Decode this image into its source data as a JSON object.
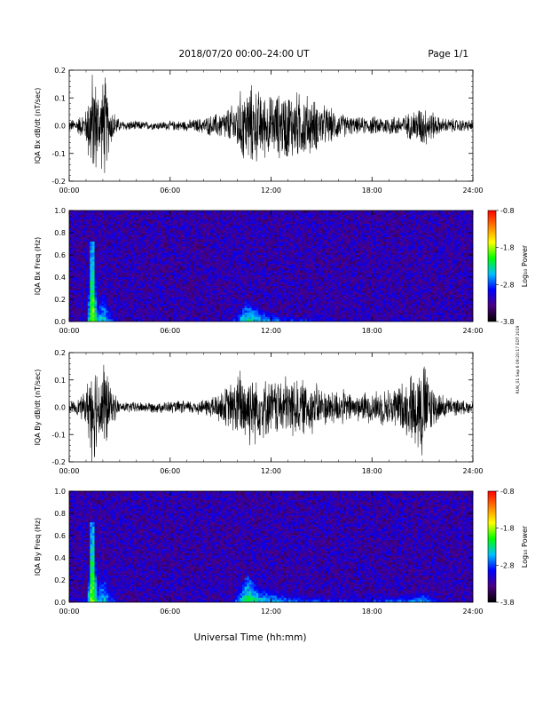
{
  "header": {
    "date_range": "2018/07/20   00:00–24:00 UT",
    "page": "Page 1/1"
  },
  "x_axis_title": "Universal Time (hh:mm)",
  "side_note": "RUN_01 Sep 6 09:20:17 EDT 2019",
  "colors": {
    "trace": "#000000",
    "spectrogram_background": "#2a0070",
    "colorbar_stops": [
      "#000000",
      "#4b0082",
      "#0000ff",
      "#00bfff",
      "#00ff00",
      "#ffff00",
      "#ff7f00",
      "#ff0000"
    ]
  },
  "chart_data": [
    {
      "type": "line",
      "ylabel": "IQA Bx dB/dt (nT/sec)",
      "xlim": [
        0,
        24
      ],
      "ylim": [
        -0.2,
        0.2
      ],
      "x_ticks": [
        "00:00",
        "06:00",
        "12:00",
        "18:00",
        "24:00"
      ],
      "y_ticks": [
        "-0.2",
        "-0.1",
        "0.0",
        "0.1",
        "0.2"
      ],
      "series": [
        {
          "description_of_activity": "waveform envelope (half-amplitude, nT/sec) vs UT hour",
          "x": [
            0,
            0.5,
            1.0,
            1.3,
            1.5,
            1.8,
            2.1,
            2.4,
            3,
            5,
            7,
            8,
            9,
            9.8,
            10.2,
            10.8,
            11.5,
            12,
            13,
            14,
            14.5,
            15,
            16,
            17,
            20,
            20.5,
            21,
            21.5,
            22,
            24
          ],
          "values": [
            0.02,
            0.03,
            0.06,
            0.2,
            0.2,
            0.12,
            0.2,
            0.08,
            0.02,
            0.015,
            0.02,
            0.03,
            0.05,
            0.08,
            0.13,
            0.15,
            0.12,
            0.11,
            0.13,
            0.12,
            0.1,
            0.08,
            0.05,
            0.03,
            0.04,
            0.06,
            0.08,
            0.06,
            0.03,
            0.02
          ]
        }
      ]
    },
    {
      "type": "heatmap",
      "ylabel": "IQA Bx Freq (Hz)",
      "xlim": [
        0,
        24
      ],
      "ylim": [
        0,
        1.0
      ],
      "x_ticks": [
        "00:00",
        "06:00",
        "12:00",
        "18:00",
        "24:00"
      ],
      "y_ticks": [
        "0.0",
        "0.2",
        "0.4",
        "0.6",
        "0.8",
        "1.0"
      ],
      "colorbar_label": "Log₁₀ Power",
      "colorbar_ticks": [
        "-0.8",
        "-1.8",
        "-2.8",
        "-3.8"
      ],
      "clim": [
        -3.8,
        -0.8
      ],
      "activity_x": [
        0,
        1.0,
        1.3,
        1.6,
        2.0,
        2.3,
        3,
        9.5,
        10.5,
        11.5,
        13,
        15,
        17,
        20,
        22,
        24
      ],
      "activity_max_freq": [
        0.03,
        0.08,
        0.9,
        0.2,
        0.3,
        0.2,
        0.04,
        0.06,
        0.2,
        0.12,
        0.08,
        0.06,
        0.05,
        0.05,
        0.04,
        0.03
      ],
      "activity_peak_power": [
        -3.3,
        -2.8,
        -1.6,
        -2.5,
        -2.4,
        -2.6,
        -3.3,
        -3.0,
        -2.2,
        -2.5,
        -2.7,
        -2.8,
        -2.9,
        -2.9,
        -3.0,
        -3.2
      ]
    },
    {
      "type": "line",
      "ylabel": "IQA By dB/dt (nT/sec)",
      "xlim": [
        0,
        24
      ],
      "ylim": [
        -0.2,
        0.2
      ],
      "x_ticks": [
        "00:00",
        "06:00",
        "12:00",
        "18:00",
        "24:00"
      ],
      "y_ticks": [
        "-0.2",
        "-0.1",
        "0.0",
        "0.1",
        "0.2"
      ],
      "series": [
        {
          "description_of_activity": "waveform envelope (half-amplitude, nT/sec) vs UT hour",
          "x": [
            0,
            0.5,
            1.0,
            1.3,
            1.5,
            1.8,
            2.1,
            2.4,
            3,
            5,
            7,
            8,
            9,
            9.8,
            10.2,
            10.8,
            11.5,
            12,
            13,
            14,
            14.5,
            15,
            16,
            17,
            19,
            20,
            20.5,
            21,
            21.5,
            22,
            23,
            24
          ],
          "values": [
            0.02,
            0.03,
            0.06,
            0.2,
            0.2,
            0.12,
            0.2,
            0.08,
            0.02,
            0.02,
            0.025,
            0.03,
            0.06,
            0.1,
            0.15,
            0.14,
            0.11,
            0.1,
            0.12,
            0.1,
            0.1,
            0.07,
            0.07,
            0.05,
            0.07,
            0.1,
            0.14,
            0.2,
            0.1,
            0.05,
            0.03,
            0.02
          ]
        }
      ]
    },
    {
      "type": "heatmap",
      "ylabel": "IQA By Freq (Hz)",
      "xlim": [
        0,
        24
      ],
      "ylim": [
        0,
        1.0
      ],
      "x_ticks": [
        "00:00",
        "06:00",
        "12:00",
        "18:00",
        "24:00"
      ],
      "y_ticks": [
        "0.0",
        "0.2",
        "0.4",
        "0.6",
        "0.8",
        "1.0"
      ],
      "colorbar_label": "Log₁₀ Power",
      "colorbar_ticks": [
        "-0.8",
        "-1.8",
        "-2.8",
        "-3.8"
      ],
      "clim": [
        -3.8,
        -0.8
      ],
      "activity_x": [
        0,
        1.0,
        1.3,
        1.6,
        2.0,
        2.3,
        3,
        9.5,
        10.5,
        11.5,
        13,
        15,
        17,
        20,
        21,
        22,
        24
      ],
      "activity_max_freq": [
        0.03,
        0.08,
        0.9,
        0.2,
        0.3,
        0.2,
        0.04,
        0.06,
        0.25,
        0.15,
        0.1,
        0.08,
        0.07,
        0.1,
        0.12,
        0.06,
        0.03
      ],
      "activity_peak_power": [
        -3.3,
        -2.8,
        -1.6,
        -2.5,
        -2.4,
        -2.6,
        -3.3,
        -3.0,
        -2.1,
        -2.4,
        -2.6,
        -2.7,
        -2.8,
        -2.6,
        -2.5,
        -2.9,
        -3.2
      ]
    }
  ]
}
